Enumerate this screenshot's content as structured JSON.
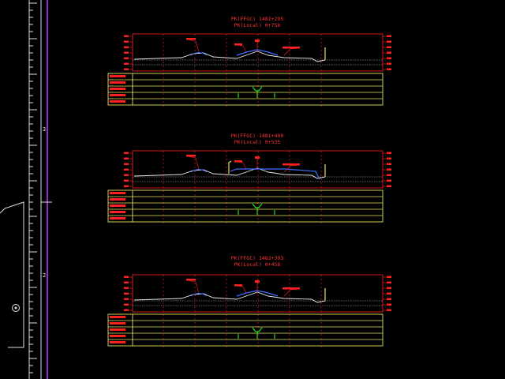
{
  "sections": [
    {
      "title_line1": "PK(FFGC) 1481+295",
      "title_line2": "PK(Local) 0+758"
    },
    {
      "title_line1": "PK(FFGC) 1481+400",
      "title_line2": "PK(Local) 0+535"
    },
    {
      "title_line1": "PK(FFGC) 1482+303",
      "title_line2": "PK(Local) 0+458"
    }
  ],
  "ruler": {
    "numbers": [
      "3",
      "2"
    ]
  },
  "colors": {
    "background": "#000000",
    "frame_red": "#ff2020",
    "table_yellow": "#e8e060",
    "ground_white": "#e6e6e6",
    "structure_blue": "#3c6cff",
    "marker_green": "#22dd22",
    "ruler_magenta": "#c040ff",
    "ruler_white": "#e0e0e0"
  },
  "icons": {
    "ruler_marker": "circle-marker-icon"
  }
}
